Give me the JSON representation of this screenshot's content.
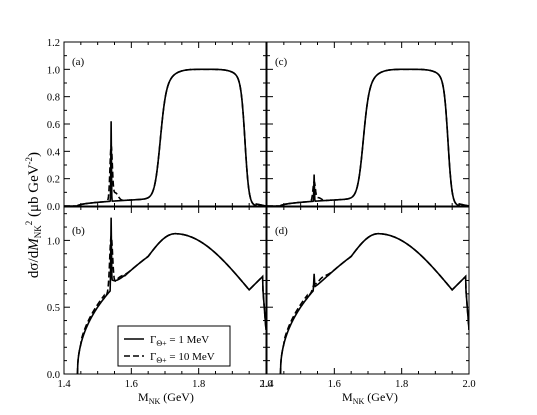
{
  "chart_data": {
    "type": "line",
    "ylabel": "dσ/dM_NK^2 (μb GeV^-2)",
    "xlabel": "M_NK (GeV)",
    "xlim": [
      1.4,
      2.0
    ],
    "ylim_top": [
      0.0,
      1.2
    ],
    "ylim_bottom": [
      0.0,
      1.25
    ],
    "xticks": [
      "1.4",
      "1.6",
      "1.8",
      "2.0"
    ],
    "yticks_top": [
      "0.0",
      "0.2",
      "0.4",
      "0.6",
      "0.8",
      "1.0",
      "1.2"
    ],
    "yticks_bottom": [
      "0.0",
      "0.5",
      "1.0"
    ],
    "legend": {
      "placement": "lower-left of panel (b)",
      "entries": [
        "Γ_Θ+ = 1 MeV",
        "Γ_Θ+ = 10 MeV"
      ]
    },
    "panels": [
      {
        "label": "(a)",
        "threshold": 1.44,
        "cutoff": 1.95,
        "broad_peak": {
          "x": 1.82,
          "y": 1.0
        },
        "series": [
          {
            "style": "solid",
            "spike_x": 1.54,
            "spike_y": 0.62
          },
          {
            "style": "dashed",
            "spike_x": 1.54,
            "spike_y": 0.42
          }
        ]
      },
      {
        "label": "(b)",
        "threshold": 1.44,
        "peak": {
          "x": 1.73,
          "y": 1.05
        },
        "shoulder": {
          "x": 1.95,
          "y": 0.63
        },
        "series": [
          {
            "style": "solid",
            "spike_x": 1.54,
            "spike_y": 1.17
          },
          {
            "style": "dashed",
            "spike_x": 1.54,
            "spike_y": 1.02
          }
        ]
      },
      {
        "label": "(c)",
        "threshold": 1.44,
        "cutoff": 1.95,
        "broad_peak": {
          "x": 1.82,
          "y": 1.0
        },
        "series": [
          {
            "style": "solid",
            "spike_x": 1.54,
            "spike_y": 0.23
          },
          {
            "style": "dashed",
            "spike_x": 1.54,
            "spike_y": 0.17
          }
        ]
      },
      {
        "label": "(d)",
        "threshold": 1.44,
        "peak": {
          "x": 1.73,
          "y": 1.05
        },
        "shoulder": {
          "x": 1.95,
          "y": 0.63
        },
        "series": [
          {
            "style": "solid",
            "spike_x": 1.54,
            "spike_y": 0.75
          },
          {
            "style": "dashed",
            "spike_x": 1.54,
            "spike_y": 0.66
          }
        ]
      }
    ]
  }
}
